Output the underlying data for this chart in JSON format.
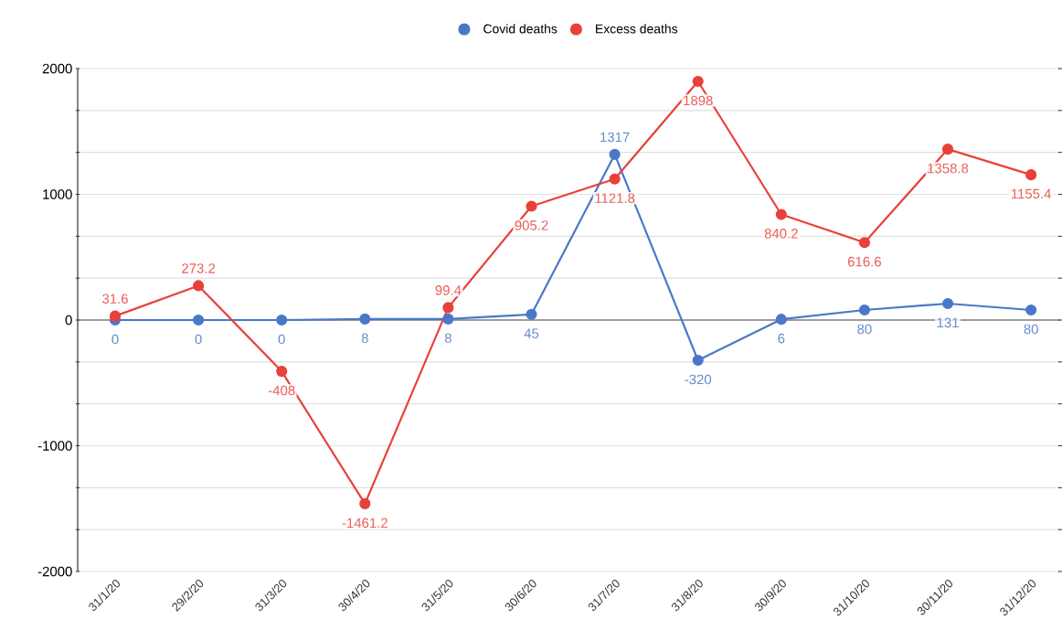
{
  "chart_data": {
    "type": "line",
    "categories": [
      "31/1/20",
      "29/2/20",
      "31/3/20",
      "30/4/20",
      "31/5/20",
      "30/6/20",
      "31/7/20",
      "31/8/20",
      "30/9/20",
      "31/10/20",
      "30/11/20",
      "31/12/20"
    ],
    "series": [
      {
        "name": "Covid deaths",
        "color": "#4a78c8",
        "values": [
          0,
          0,
          0,
          8,
          8,
          45,
          1317,
          -320,
          6,
          80,
          131,
          80
        ]
      },
      {
        "name": "Excess deaths",
        "color": "#e8413a",
        "values": [
          31.6,
          273.2,
          -408,
          -1461.2,
          99.4,
          905.2,
          1121.8,
          1898,
          840.2,
          616.6,
          1358.8,
          1155.4
        ]
      }
    ],
    "ylim": [
      -2000,
      2000
    ],
    "yticks": [
      -2000,
      {
        "value": -1666.67,
        "label": null
      },
      {
        "value": -1333.33,
        "label": null
      },
      -1000,
      {
        "value": -666.67,
        "label": null
      },
      {
        "value": -333.33,
        "label": null
      },
      0,
      {
        "value": 333.33,
        "label": null
      },
      {
        "value": 666.67,
        "label": null
      },
      1000,
      {
        "value": 1333.33,
        "label": null
      },
      {
        "value": 1666.67,
        "label": null
      },
      2000
    ],
    "grid": "y",
    "legend": "top",
    "marker": "circle",
    "line_style": "solid",
    "data_labels": true
  }
}
